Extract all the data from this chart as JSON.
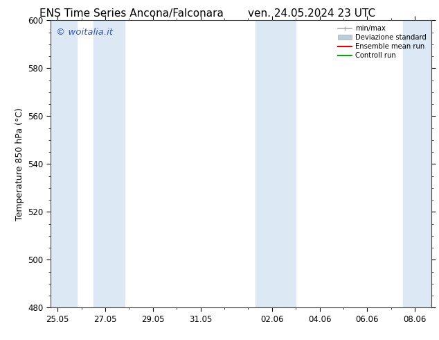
{
  "title_left": "ENS Time Series Ancona/Falconara",
  "title_right": "ven. 24.05.2024 23 UTC",
  "ylabel": "Temperature 850 hPa (°C)",
  "ylim": [
    480,
    600
  ],
  "yticks": [
    480,
    500,
    520,
    540,
    560,
    580,
    600
  ],
  "xtick_labels": [
    "25.05",
    "27.05",
    "29.05",
    "31.05",
    "02.06",
    "04.06",
    "06.06",
    "08.06"
  ],
  "xtick_positions": [
    0,
    2,
    4,
    6,
    9,
    11,
    13,
    15
  ],
  "watermark": "© woitalia.it",
  "watermark_color": "#3355bb",
  "bg_color": "#ffffff",
  "plot_bg_color": "#ffffff",
  "shade_color": "#dce9f5",
  "legend_labels": [
    "min/max",
    "Deviazione standard",
    "Ensemble mean run",
    "Controll run"
  ],
  "minmax_color": "#aaaaaa",
  "dev_color": "#bbccdd",
  "ens_color": "#dd0000",
  "ctrl_color": "#00aa00",
  "title_fontsize": 11,
  "axis_label_fontsize": 9,
  "tick_fontsize": 8.5,
  "watermark_fontsize": 9.5
}
